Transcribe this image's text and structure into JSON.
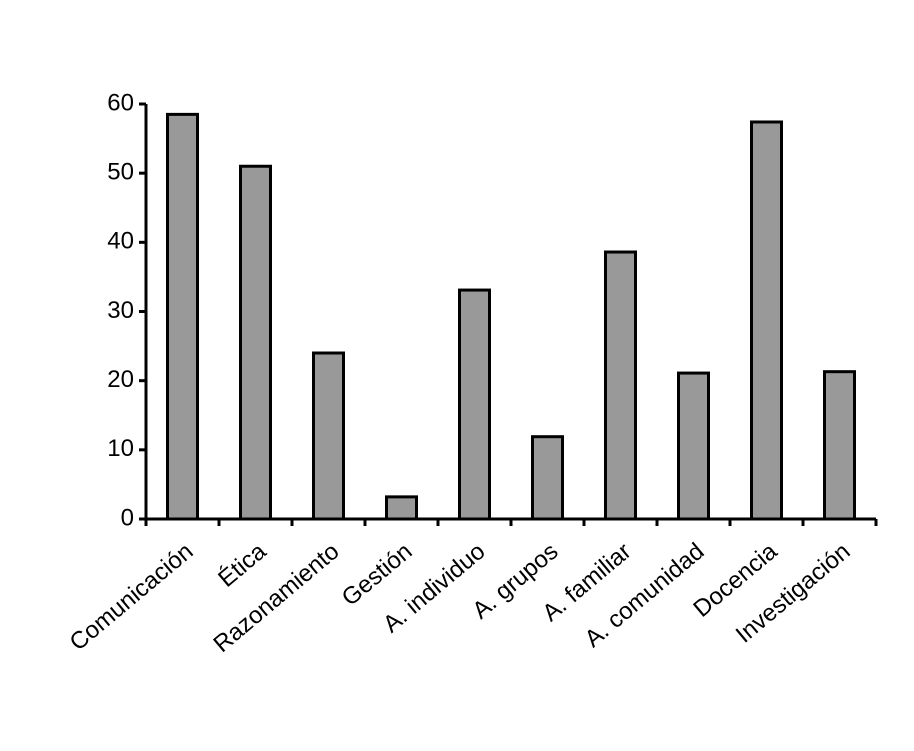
{
  "chart_data": {
    "type": "bar",
    "categories": [
      "Comunicación",
      "Ética",
      "Razonamiento",
      "Gestión",
      "A. individuo",
      "A. grupos",
      "A. familiar",
      "A. comunidad",
      "Docencia",
      "Investigación"
    ],
    "values": [
      58.5,
      51,
      24,
      3.2,
      33.1,
      11.9,
      38.6,
      21.1,
      57.4,
      21.3
    ],
    "color": "#999999",
    "ylim": [
      0,
      60
    ],
    "yticks": [
      0,
      10,
      20,
      30,
      40,
      50,
      60
    ],
    "grid": false
  }
}
